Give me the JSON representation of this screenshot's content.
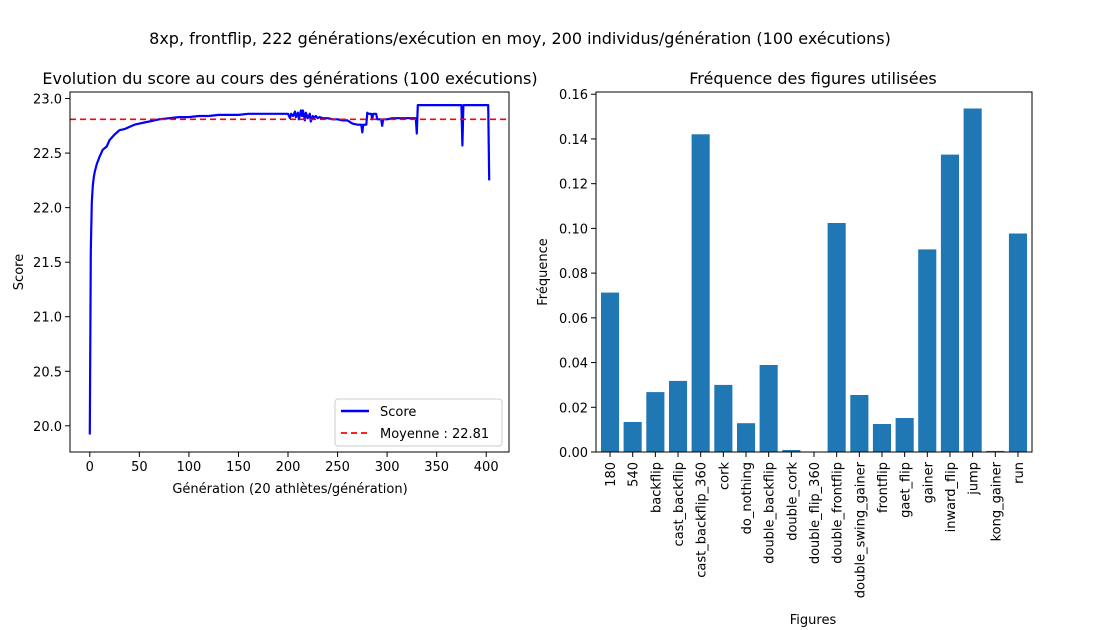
{
  "figure": {
    "suptitle": "8xp, frontflip, 222 générations/exécution en moy, 200 individus/génération (100 exécutions)"
  },
  "colors": {
    "score_line": "#0000ff",
    "mean_line": "#ff0000",
    "bar": "#1f77b4",
    "axis": "#000000"
  },
  "chart_data": [
    {
      "type": "line",
      "title": "Evolution du score au cours des générations (100 exécutions)",
      "xlabel": "Génération (20 athlètes/génération)",
      "ylabel": "Score",
      "xlim": [
        -20,
        423
      ],
      "ylim": [
        19.76,
        23.06
      ],
      "xticks": [
        0,
        50,
        100,
        150,
        200,
        250,
        300,
        350,
        400
      ],
      "yticks": [
        20.0,
        20.5,
        21.0,
        21.5,
        22.0,
        22.5,
        23.0
      ],
      "ytick_labels": [
        "20.0",
        "20.5",
        "21.0",
        "21.5",
        "22.0",
        "22.5",
        "23.0"
      ],
      "grid": false,
      "legend_position": "lower-right",
      "series": [
        {
          "name": "Score",
          "style": "solid",
          "x": [
            0,
            1,
            2,
            3,
            4,
            5,
            7,
            10,
            13,
            17,
            20,
            25,
            30,
            35,
            40,
            45,
            50,
            55,
            60,
            70,
            80,
            90,
            100,
            110,
            120,
            130,
            140,
            150,
            160,
            170,
            180,
            190,
            200,
            202,
            203,
            205,
            207,
            208,
            210,
            211,
            213,
            214,
            215,
            217,
            218,
            220,
            222,
            223,
            225,
            226,
            228,
            230,
            232,
            235,
            240,
            245,
            250,
            255,
            260,
            265,
            270,
            274,
            275,
            276,
            279,
            280,
            281,
            284,
            285,
            286,
            289,
            290,
            294,
            295,
            296,
            300,
            305,
            310,
            315,
            320,
            325,
            329,
            330,
            331,
            335,
            340,
            350,
            360,
            370,
            375,
            376,
            377,
            378,
            380,
            390,
            400,
            402,
            403
          ],
          "values": [
            19.92,
            21.6,
            22.05,
            22.2,
            22.28,
            22.33,
            22.4,
            22.47,
            22.53,
            22.56,
            22.62,
            22.67,
            22.71,
            22.72,
            22.74,
            22.76,
            22.77,
            22.78,
            22.79,
            22.81,
            22.82,
            22.83,
            22.83,
            22.84,
            22.84,
            22.85,
            22.85,
            22.85,
            22.86,
            22.86,
            22.86,
            22.86,
            22.86,
            22.82,
            22.86,
            22.84,
            22.88,
            22.83,
            22.87,
            22.81,
            22.89,
            22.84,
            22.89,
            22.8,
            22.87,
            22.82,
            22.86,
            22.79,
            22.84,
            22.82,
            22.84,
            22.82,
            22.83,
            22.82,
            22.82,
            22.81,
            22.81,
            22.8,
            22.8,
            22.77,
            22.76,
            22.76,
            22.69,
            22.76,
            22.76,
            22.87,
            22.86,
            22.86,
            22.81,
            22.86,
            22.86,
            22.81,
            22.81,
            22.75,
            22.81,
            22.81,
            22.82,
            22.82,
            22.82,
            22.82,
            22.82,
            22.82,
            22.68,
            22.94,
            22.94,
            22.94,
            22.94,
            22.94,
            22.94,
            22.94,
            22.57,
            22.94,
            22.94,
            22.94,
            22.94,
            22.94,
            22.94,
            22.25
          ]
        },
        {
          "name": "Moyenne : 22.81",
          "style": "dashed",
          "y": 22.81
        }
      ]
    },
    {
      "type": "bar",
      "title": "Fréquence des figures utilisées",
      "xlabel": "Figures",
      "ylabel": "Fréquence",
      "ylim": [
        0,
        0.161
      ],
      "yticks": [
        0.0,
        0.02,
        0.04,
        0.06,
        0.08,
        0.1,
        0.12,
        0.14,
        0.16
      ],
      "ytick_labels": [
        "0.00",
        "0.02",
        "0.04",
        "0.06",
        "0.08",
        "0.10",
        "0.12",
        "0.14",
        "0.16"
      ],
      "grid": false,
      "categories": [
        "180",
        "540",
        "backflip",
        "cast_backflip",
        "cast_backflip_360",
        "cork",
        "do_nothing",
        "double_backflip",
        "double_cork",
        "double_flip_360",
        "double_frontflip",
        "double_swing_gainer",
        "frontflip",
        "gaet_flip",
        "gainer",
        "inward_flip",
        "jump",
        "kong_gainer",
        "run"
      ],
      "values": [
        0.0713,
        0.0134,
        0.0268,
        0.0318,
        0.1421,
        0.03,
        0.0129,
        0.0389,
        0.0009,
        0.0,
        0.1024,
        0.0255,
        0.0125,
        0.0152,
        0.0906,
        0.133,
        0.1536,
        0.0005,
        0.0977
      ]
    }
  ]
}
